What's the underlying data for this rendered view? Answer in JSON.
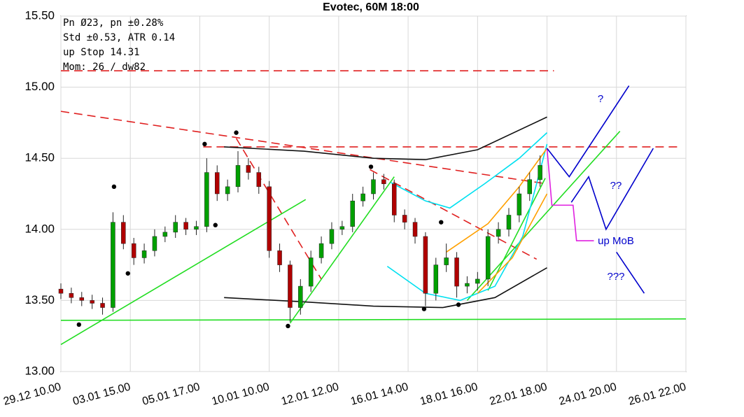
{
  "chart_data": {
    "type": "candlestick",
    "title": "Evotec, 60M 18:00",
    "info_lines": [
      "Pn  Ø23, pn ±0.28%",
      "Std ±0.53, ATR 0.14",
      "up Stop 14.31",
      "Mom: 26 / dw82"
    ],
    "annotations": [
      "?",
      "??",
      "up MoB",
      "???"
    ],
    "annotation_color": "#0000cc",
    "xlim": [
      0,
      180
    ],
    "xticks": [
      {
        "value": 0,
        "label": "29.12 10.00"
      },
      {
        "value": 20,
        "label": "03.01 15.00"
      },
      {
        "value": 40,
        "label": "05.01 17.00"
      },
      {
        "value": 60,
        "label": "10.01 10.00"
      },
      {
        "value": 80,
        "label": "12.01 12.00"
      },
      {
        "value": 100,
        "label": "16.01 14.00"
      },
      {
        "value": 120,
        "label": "18.01 16.00"
      },
      {
        "value": 140,
        "label": "22.01 18.00"
      },
      {
        "value": 160,
        "label": "24.01 20.00"
      },
      {
        "value": 180,
        "label": "26.01 22.00"
      }
    ],
    "ylim": [
      13,
      15.5
    ],
    "yticks": [
      {
        "value": 13,
        "label": "13.00"
      },
      {
        "value": 13.5,
        "label": "13.50"
      },
      {
        "value": 14,
        "label": "14.00"
      },
      {
        "value": 14.5,
        "label": "14.50"
      },
      {
        "value": 15,
        "label": "15.00"
      },
      {
        "value": 15.5,
        "label": "15.50"
      }
    ],
    "grid": true,
    "up_color": "#00a000",
    "down_color": "#b00000",
    "x": [
      0,
      3,
      6,
      9,
      12,
      15,
      18,
      21,
      24,
      27,
      30,
      33,
      36,
      39,
      42,
      45,
      48,
      51,
      54,
      57,
      60,
      63,
      66,
      69,
      72,
      75,
      78,
      81,
      84,
      87,
      90,
      93,
      96,
      99,
      102,
      105,
      108,
      111,
      114,
      117,
      120,
      123,
      126,
      129,
      132,
      135,
      138
    ],
    "open": [
      13.58,
      13.55,
      13.52,
      13.5,
      13.48,
      13.45,
      14.05,
      13.9,
      13.8,
      13.85,
      13.95,
      13.98,
      14.05,
      14.0,
      14.02,
      14.4,
      14.25,
      14.3,
      14.45,
      14.4,
      14.3,
      13.85,
      13.75,
      13.45,
      13.6,
      13.8,
      13.9,
      14.0,
      14.02,
      14.2,
      14.25,
      14.35,
      14.32,
      14.1,
      14.05,
      13.95,
      13.55,
      13.75,
      13.8,
      13.6,
      13.62,
      13.65,
      13.95,
      14.0,
      14.1,
      14.25,
      14.35
    ],
    "high": [
      13.62,
      13.59,
      13.56,
      13.54,
      13.52,
      14.12,
      14.1,
      13.94,
      13.9,
      14.0,
      14.02,
      14.1,
      14.08,
      14.06,
      14.5,
      14.45,
      14.35,
      14.55,
      14.5,
      14.44,
      14.34,
      13.9,
      13.78,
      13.65,
      13.85,
      13.95,
      14.05,
      14.06,
      14.25,
      14.3,
      14.4,
      14.39,
      14.35,
      14.14,
      14.08,
      13.98,
      13.8,
      13.9,
      13.84,
      13.67,
      13.7,
      14.0,
      14.05,
      14.15,
      14.3,
      14.4,
      14.52
    ],
    "low": [
      13.51,
      13.48,
      13.46,
      13.44,
      13.4,
      13.42,
      13.86,
      13.75,
      13.76,
      13.81,
      13.91,
      13.94,
      13.96,
      13.96,
      13.98,
      14.2,
      14.2,
      14.26,
      14.35,
      14.25,
      13.8,
      13.7,
      13.35,
      13.4,
      13.56,
      13.76,
      13.86,
      13.96,
      13.98,
      14.16,
      14.21,
      14.28,
      14.05,
      14.0,
      13.9,
      13.46,
      13.5,
      13.7,
      13.52,
      13.55,
      13.57,
      13.6,
      13.9,
      13.95,
      14.05,
      14.2,
      14.3
    ],
    "close": [
      13.55,
      13.52,
      13.5,
      13.48,
      13.45,
      14.05,
      13.9,
      13.8,
      13.85,
      13.95,
      13.98,
      14.05,
      14.0,
      14.02,
      14.4,
      14.25,
      14.3,
      14.45,
      14.4,
      14.3,
      13.85,
      13.75,
      13.45,
      13.6,
      13.8,
      13.9,
      14.0,
      14.02,
      14.2,
      14.25,
      14.35,
      14.32,
      14.1,
      14.05,
      13.95,
      13.55,
      13.75,
      13.8,
      13.6,
      13.62,
      13.65,
      13.95,
      14.0,
      14.1,
      14.25,
      14.35,
      14.45
    ],
    "points": {
      "x": [
        5.2,
        15.3,
        19.3,
        41.4,
        44.5,
        50.5,
        65.4,
        89.3,
        104.6,
        109.5,
        114.5
      ],
      "y": [
        13.33,
        14.3,
        13.69,
        14.6,
        14.03,
        14.68,
        13.32,
        14.44,
        13.44,
        14.05,
        13.47
      ]
    },
    "lines": [
      {
        "color": "#e02020",
        "dashed": true,
        "x": [
          0,
          142
        ],
        "y": [
          15.115,
          15.115
        ]
      },
      {
        "color": "#e02020",
        "dashed": true,
        "x": [
          0,
          140
        ],
        "y": [
          14.83,
          14.32
        ]
      },
      {
        "color": "#e02020",
        "dashed": true,
        "x": [
          41,
          178
        ],
        "y": [
          14.58,
          14.58
        ]
      },
      {
        "color": "#e02020",
        "dashed": true,
        "x": [
          50.5,
          75
        ],
        "y": [
          14.64,
          13.65
        ]
      },
      {
        "color": "#e02020",
        "dashed": true,
        "x": [
          89,
          137
        ],
        "y": [
          14.42,
          13.79
        ]
      },
      {
        "color": "#22dd22",
        "dashed": false,
        "x": [
          0,
          70.5
        ],
        "y": [
          13.19,
          14.21
        ]
      },
      {
        "color": "#22dd22",
        "dashed": false,
        "x": [
          0,
          180
        ],
        "y": [
          13.36,
          13.37
        ]
      },
      {
        "color": "#22dd22",
        "dashed": false,
        "x": [
          66,
          96
        ],
        "y": [
          13.34,
          14.37
        ]
      },
      {
        "color": "#22dd22",
        "dashed": false,
        "x": [
          117,
          161
        ],
        "y": [
          13.5,
          14.69
        ]
      },
      {
        "color": "#22dd22",
        "dashed": false,
        "x": [
          123,
          139.5
        ],
        "y": [
          13.57,
          14.36
        ]
      },
      {
        "color": "#111111",
        "dashed": false,
        "x": [
          47,
          70,
          90,
          110,
          125,
          140
        ],
        "y": [
          13.52,
          13.49,
          13.46,
          13.45,
          13.52,
          13.73
        ]
      },
      {
        "color": "#111111",
        "dashed": false,
        "x": [
          47,
          70,
          90,
          105,
          120,
          140
        ],
        "y": [
          14.58,
          14.55,
          14.5,
          14.49,
          14.56,
          14.79
        ]
      },
      {
        "color": "#00e0f0",
        "dashed": false,
        "x": [
          94,
          105,
          115,
          125,
          133,
          140
        ],
        "y": [
          13.74,
          13.55,
          13.5,
          13.6,
          13.95,
          14.6
        ]
      },
      {
        "color": "#00e0f0",
        "dashed": false,
        "x": [
          95,
          105,
          112,
          122,
          132,
          140
        ],
        "y": [
          14.33,
          14.2,
          14.15,
          14.32,
          14.5,
          14.68
        ]
      },
      {
        "color": "#ffa000",
        "dashed": false,
        "x": [
          111,
          123,
          132,
          140
        ],
        "y": [
          13.84,
          14.04,
          14.3,
          14.57
        ]
      },
      {
        "color": "#ffa000",
        "dashed": false,
        "x": [
          120,
          130,
          140
        ],
        "y": [
          13.55,
          13.8,
          14.25
        ]
      },
      {
        "color": "#e020e0",
        "dashed": false,
        "x": [
          140,
          141.4,
          147.5,
          148.5,
          153.5
        ],
        "y": [
          14.57,
          14.17,
          14.17,
          13.92,
          13.92
        ]
      },
      {
        "color": "#0000cc",
        "dashed": false,
        "x": [
          140,
          146.4,
          163.6
        ],
        "y": [
          14.57,
          14.37,
          15.01
        ]
      },
      {
        "color": "#0000cc",
        "dashed": false,
        "x": [
          147,
          152,
          157,
          170.6
        ],
        "y": [
          14.19,
          14.37,
          14.0,
          14.57
        ]
      },
      {
        "color": "#0000cc",
        "dashed": false,
        "x": [
          160,
          168
        ],
        "y": [
          13.84,
          13.55
        ]
      }
    ]
  }
}
